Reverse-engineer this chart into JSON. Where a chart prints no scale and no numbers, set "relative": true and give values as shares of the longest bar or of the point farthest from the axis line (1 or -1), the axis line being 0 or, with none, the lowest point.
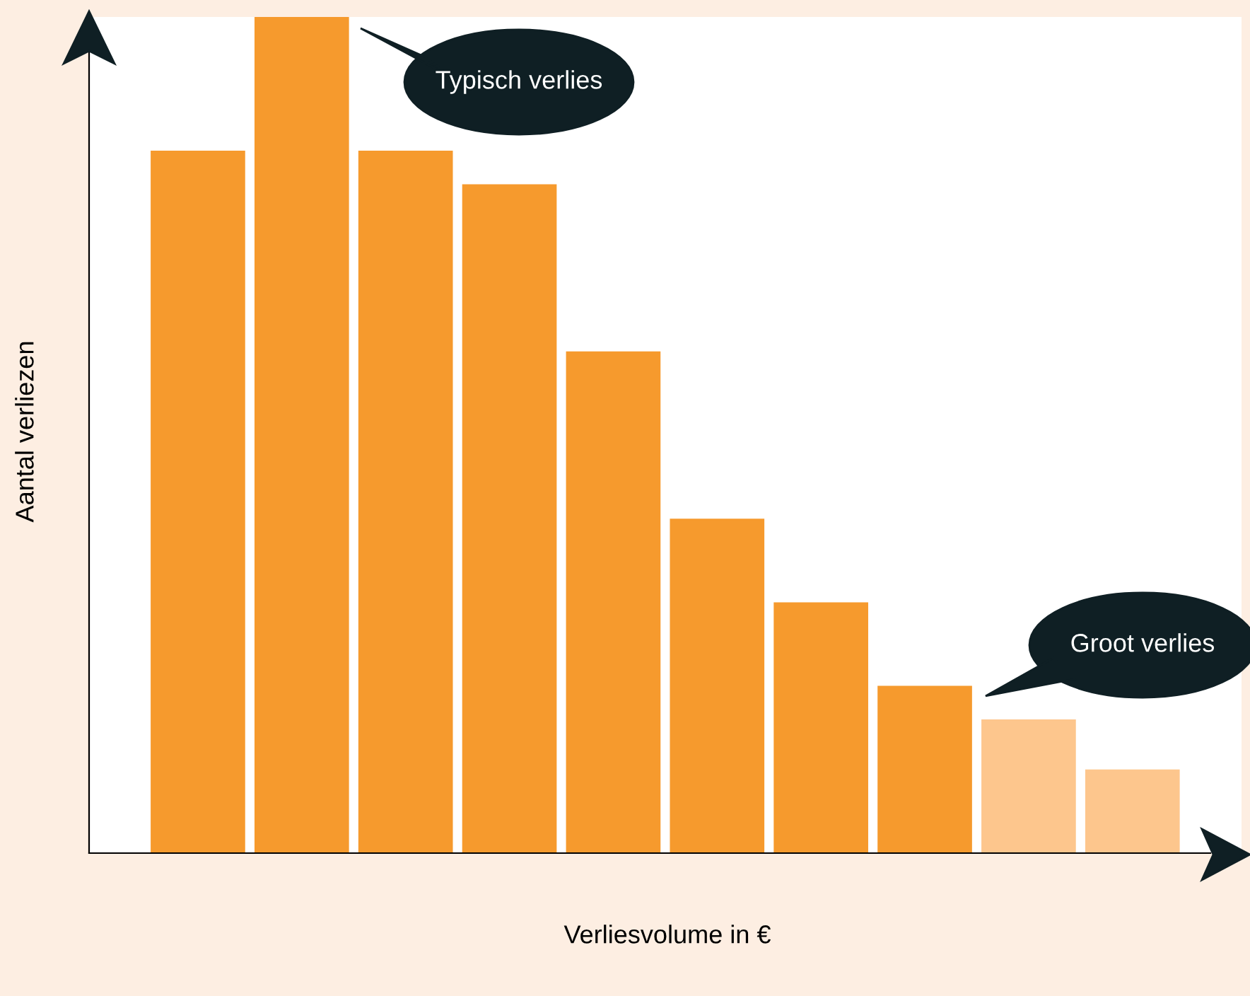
{
  "chart_data": {
    "type": "bar",
    "relative": true,
    "xlabel": "Verliesvolume in €",
    "ylabel": "Aantal verliezen",
    "categories": [
      null,
      null,
      null,
      null,
      null,
      null,
      null,
      null,
      null,
      null
    ],
    "values": [
      0.84,
      1,
      0.84,
      0.8,
      0.6,
      0.4,
      0.3,
      0.2,
      0.16,
      0.1
    ],
    "colors": [
      "#f69a2d",
      "#f69a2d",
      "#f69a2d",
      "#f69a2d",
      "#f69a2d",
      "#f69a2d",
      "#f69a2d",
      "#f69a2d",
      "#fdc68d",
      "#fdc68d"
    ],
    "annotations": [
      "Typisch verlies",
      "Groot verlies"
    ],
    "grid": false
  }
}
